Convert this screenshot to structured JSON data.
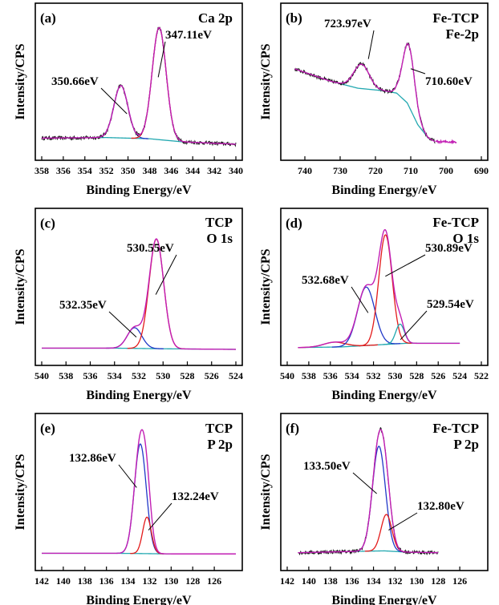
{
  "figure": {
    "colors": {
      "raw": "#101010",
      "envelope": "#c21fb4",
      "background": "#22a8b0",
      "peak_red": "#e31a1a",
      "peak_blue": "#2038c8",
      "background_olive": "#8a8a20"
    }
  },
  "chart_data": [
    {
      "type": "line",
      "panel": "(a)",
      "title_lines": [
        "Ca 2p"
      ],
      "xlabel": "Binding Energy/eV",
      "ylabel": "Intensity/CPS",
      "xlim": [
        358,
        340
      ],
      "x_ticks": [
        "358",
        "356",
        "354",
        "352",
        "350",
        "348",
        "346",
        "344",
        "342",
        "340"
      ],
      "y_scale": "arbitrary",
      "background": {
        "x": [
          358,
          352,
          348,
          345,
          340
        ],
        "y": [
          0.05,
          0.055,
          0.045,
          0.02,
          0.0
        ]
      },
      "peaks": [
        {
          "center": 350.66,
          "height": 0.43,
          "width": 0.65,
          "color": "peak_blue",
          "label": "350.66eV"
        },
        {
          "center": 347.11,
          "height": 0.92,
          "width": 0.65,
          "color": "peak_red",
          "label": "347.11eV"
        }
      ],
      "raw": true,
      "annotations": [
        {
          "text": "347.11eV",
          "target_x": 347.2,
          "target_y": 0.55
        },
        {
          "text": "350.66eV",
          "target_x": 350.1,
          "target_y": 0.25
        }
      ]
    },
    {
      "type": "line",
      "panel": "(b)",
      "title_lines": [
        "Fe-TCP",
        "Fe-2p"
      ],
      "xlabel": "Binding Energy/eV",
      "ylabel": "Intensity/CPS",
      "xlim": [
        745,
        690
      ],
      "x_ticks": [
        "740",
        "730",
        "720",
        "710",
        "700",
        "690"
      ],
      "y_scale": "arbitrary",
      "background": {
        "x": [
          743,
          733,
          725,
          718,
          714,
          711,
          708,
          705,
          703
        ],
        "y": [
          0.62,
          0.52,
          0.46,
          0.44,
          0.42,
          0.34,
          0.16,
          0.05,
          0.02
        ]
      },
      "envelope_peaks": [
        {
          "center": 723.97,
          "height": 0.2,
          "width": 2.2
        },
        {
          "center": 710.6,
          "height": 0.5,
          "width": 1.7
        }
      ],
      "raw": true,
      "annotations": [
        {
          "text": "723.97eV",
          "target_x": 722.0,
          "target_y": 0.7
        },
        {
          "text": "710.60eV",
          "target_x": 710.0,
          "target_y": 0.62
        }
      ]
    },
    {
      "type": "line",
      "panel": "(c)",
      "title_lines": [
        "TCP",
        "O 1s"
      ],
      "xlabel": "Binding Energy/eV",
      "ylabel": "Intensity/CPS",
      "xlim": [
        540,
        524
      ],
      "x_ticks": [
        "540",
        "538",
        "536",
        "534",
        "532",
        "530",
        "528",
        "526",
        "524"
      ],
      "y_scale": "arbitrary",
      "background": {
        "x": [
          540,
          534,
          530,
          524
        ],
        "y": [
          0.01,
          0.01,
          0.005,
          0.0
        ]
      },
      "peaks": [
        {
          "center": 532.35,
          "height": 0.17,
          "width": 0.6,
          "color": "peak_blue",
          "label": "532.35eV"
        },
        {
          "center": 530.55,
          "height": 0.9,
          "width": 0.6,
          "color": "peak_red",
          "label": "530.55eV"
        }
      ],
      "raw": false,
      "annotations": [
        {
          "text": "530.55eV",
          "target_x": 530.6,
          "target_y": 0.45
        },
        {
          "text": "532.35eV",
          "target_x": 532.2,
          "target_y": 0.1
        }
      ]
    },
    {
      "type": "line",
      "panel": "(d)",
      "title_lines": [
        "Fe-TCP",
        "O 1s"
      ],
      "xlabel": "Binding Energy/eV",
      "ylabel": "Intensity/CPS",
      "xlim": [
        540,
        522
      ],
      "x_ticks": [
        "540",
        "538",
        "536",
        "534",
        "532",
        "530",
        "528",
        "526",
        "524",
        "522"
      ],
      "y_scale": "arbitrary",
      "background": {
        "x": [
          539,
          535,
          531,
          529,
          526,
          524
        ],
        "y": [
          0.015,
          0.02,
          0.04,
          0.05,
          0.05,
          0.05
        ]
      },
      "peaks": [
        {
          "center": 535.6,
          "height": 0.04,
          "width": 1.0,
          "color": "peak_red"
        },
        {
          "center": 532.68,
          "height": 0.48,
          "width": 0.8,
          "color": "peak_blue",
          "label": "532.68eV"
        },
        {
          "center": 530.89,
          "height": 0.9,
          "width": 0.62,
          "color": "peak_red",
          "label": "530.89eV"
        },
        {
          "center": 529.54,
          "height": 0.16,
          "width": 0.4,
          "color": "background",
          "label": "529.54eV"
        }
      ],
      "raw": false,
      "annotations": [
        {
          "text": "530.89eV",
          "target_x": 530.9,
          "target_y": 0.6
        },
        {
          "text": "532.68eV",
          "target_x": 532.5,
          "target_y": 0.3
        },
        {
          "text": "529.54eV",
          "target_x": 529.5,
          "target_y": 0.08
        }
      ]
    },
    {
      "type": "line",
      "panel": "(e)",
      "title_lines": [
        "TCP",
        "P 2p"
      ],
      "xlabel": "Binding Energy/eV",
      "ylabel": "Intensity/CPS",
      "xlim": [
        142,
        124
      ],
      "x_ticks": [
        "142",
        "140",
        "138",
        "136",
        "134",
        "132",
        "130",
        "128",
        "126"
      ],
      "y_scale": "arbitrary",
      "background": {
        "x": [
          142,
          135,
          130,
          124
        ],
        "y": [
          0.01,
          0.01,
          0.005,
          0.005
        ]
      },
      "peaks": [
        {
          "center": 132.86,
          "height": 0.9,
          "width": 0.55,
          "color": "peak_blue",
          "label": "132.86eV"
        },
        {
          "center": 132.24,
          "height": 0.3,
          "width": 0.4,
          "color": "peak_red",
          "label": "132.24eV"
        }
      ],
      "raw": false,
      "annotations": [
        {
          "text": "132.86eV",
          "target_x": 133.2,
          "target_y": 0.55
        },
        {
          "text": "132.24eV",
          "target_x": 132.1,
          "target_y": 0.2
        }
      ]
    },
    {
      "type": "line",
      "panel": "(f)",
      "title_lines": [
        "Fe-TCP",
        "P 2p"
      ],
      "xlabel": "Binding Energy/eV",
      "ylabel": "Intensity/CPS",
      "xlim": [
        142,
        124
      ],
      "x_ticks": [
        "142",
        "140",
        "138",
        "136",
        "134",
        "132",
        "130",
        "128",
        "126"
      ],
      "y_scale": "arbitrary",
      "background": {
        "x": [
          141,
          136,
          133,
          131,
          128
        ],
        "y": [
          0.015,
          0.025,
          0.03,
          0.02,
          0.015
        ]
      },
      "peaks": [
        {
          "center": 133.5,
          "height": 0.86,
          "width": 0.6,
          "color": "peak_blue",
          "label": "133.50eV"
        },
        {
          "center": 132.8,
          "height": 0.3,
          "width": 0.5,
          "color": "peak_red",
          "label": "132.80eV"
        }
      ],
      "raw": true,
      "annotations": [
        {
          "text": "133.50eV",
          "target_x": 133.7,
          "target_y": 0.5
        },
        {
          "text": "132.80eV",
          "target_x": 132.6,
          "target_y": 0.2
        }
      ]
    }
  ]
}
